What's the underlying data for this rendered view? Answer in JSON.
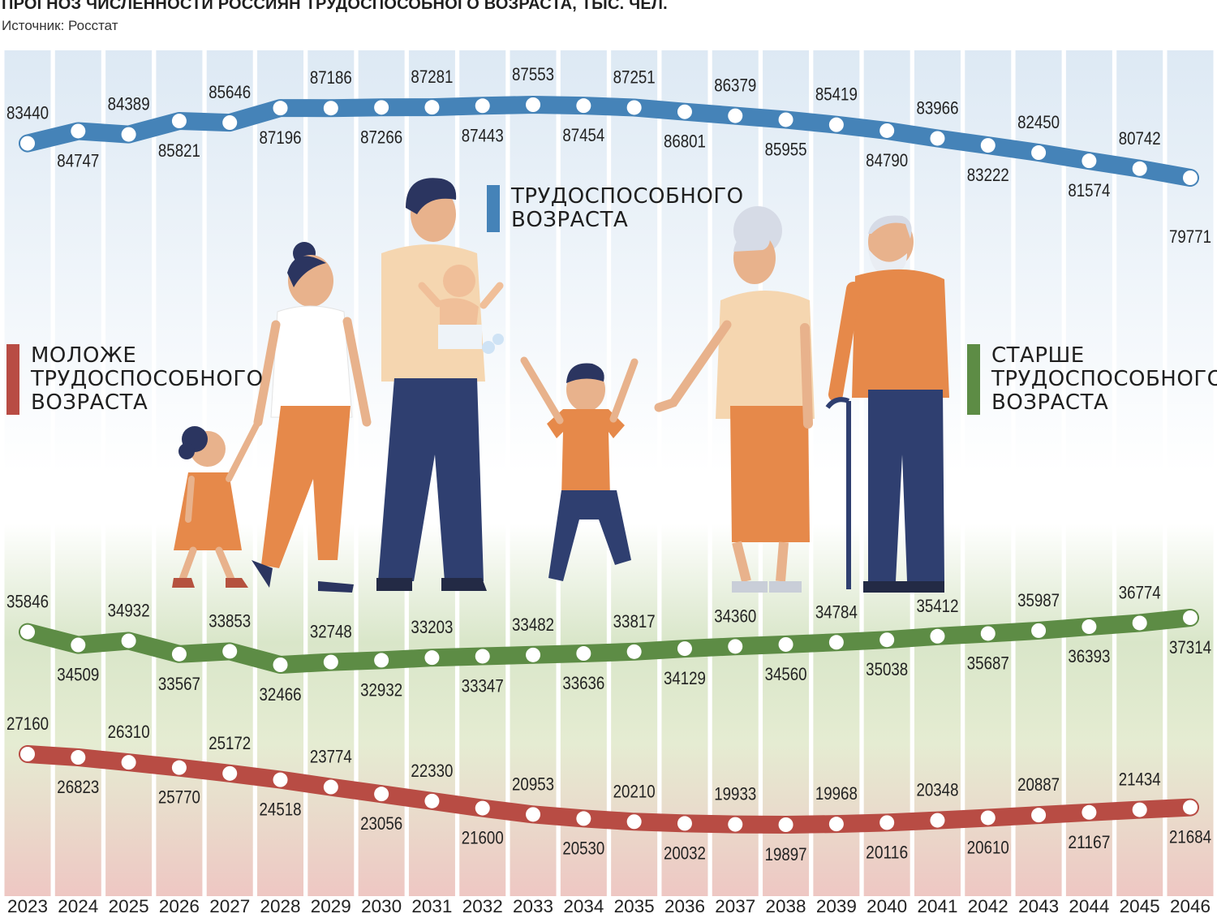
{
  "header": {
    "title": "ПРОГНОЗ ЧИСЛЕННОСТИ РОССИЯН ТРУДОСПОСОБНОГО ВОЗРАСТА, ТЫС. ЧЕЛ.",
    "source": "Источник: Росстат"
  },
  "legend": {
    "working": {
      "lines": [
        "ТРУДОСПОСОБНОГО",
        "ВОЗРАСТА"
      ],
      "color": "#4583b8"
    },
    "young": {
      "lines": [
        "МОЛОЖЕ",
        "ТРУДОСПОСОБНОГО",
        "ВОЗРАСТА"
      ],
      "color": "#b84c44"
    },
    "old": {
      "lines": [
        "СТАРШЕ",
        "ТРУДОСПОСОБНОГО",
        "ВОЗРАСТА"
      ],
      "color": "#5d8c45"
    }
  },
  "chart_data": {
    "type": "line",
    "title": "ПРОГНОЗ ЧИСЛЕННОСТИ РОССИЯН ТРУДОСПОСОБНОГО ВОЗРАСТА, ТЫС. ЧЕЛ.",
    "x": [
      "2023",
      "2024",
      "2025",
      "2026",
      "2027",
      "2028",
      "2029",
      "2030",
      "2031",
      "2032",
      "2033",
      "2034",
      "2035",
      "2036",
      "2037",
      "2038",
      "2039",
      "2040",
      "2041",
      "2042",
      "2043",
      "2044",
      "2045",
      "2046"
    ],
    "series": [
      {
        "name": "ТРУДОСПОСОБНОГО ВОЗРАСТА",
        "color": "#4583b8",
        "values": [
          83440,
          84747,
          84389,
          85821,
          85646,
          87196,
          87186,
          87266,
          87281,
          87443,
          87553,
          87454,
          87251,
          86801,
          86379,
          85955,
          85419,
          84790,
          83966,
          83222,
          82450,
          81574,
          80742,
          79771
        ]
      },
      {
        "name": "СТАРШЕ ТРУДОСПОСОБНОГО ВОЗРАСТА",
        "color": "#5d8c45",
        "values": [
          35846,
          34509,
          34932,
          33567,
          33853,
          32466,
          32748,
          32932,
          33203,
          33347,
          33482,
          33636,
          33817,
          34129,
          34360,
          34560,
          34784,
          35038,
          35412,
          35687,
          35987,
          36393,
          36774,
          37314
        ]
      },
      {
        "name": "МОЛОЖЕ ТРУДОСПОСОБНОГО ВОЗРАСТА",
        "color": "#b84c44",
        "values": [
          27160,
          26823,
          26310,
          25770,
          25172,
          24518,
          23774,
          23056,
          22330,
          21600,
          20953,
          20530,
          20210,
          20032,
          19933,
          19897,
          19968,
          20116,
          20348,
          20610,
          20887,
          21167,
          21434,
          21684
        ]
      }
    ],
    "legend": "inline-labels",
    "grid": true
  }
}
